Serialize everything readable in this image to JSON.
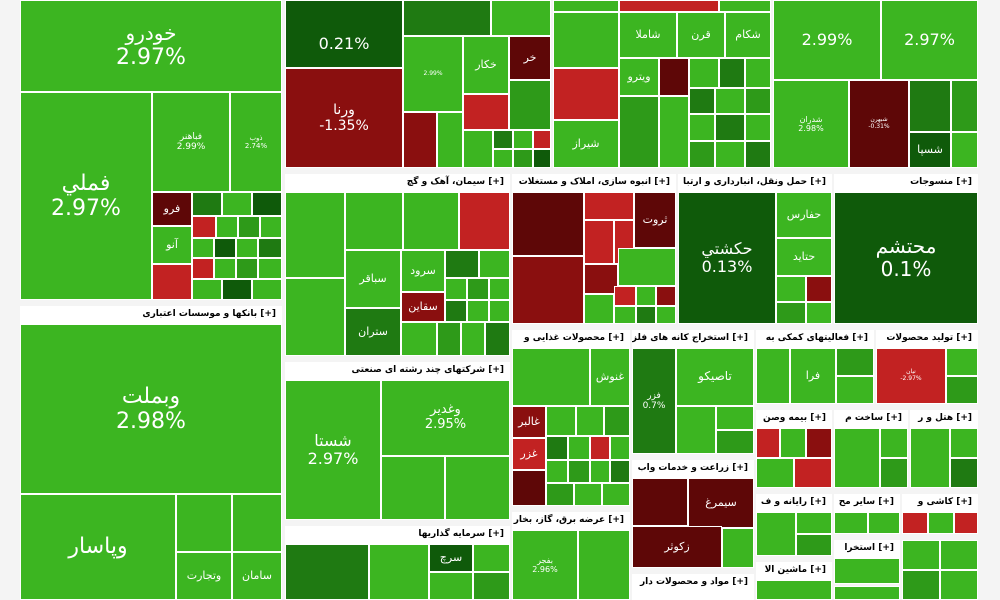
{
  "colors": {
    "g1": "#3cb521",
    "g2": "#2e9a19",
    "g3": "#1f7a12",
    "g4": "#0f5a0a",
    "r1": "#c22222",
    "r2": "#8a0f0f",
    "r3": "#5e0707"
  },
  "sections": [
    {
      "id": "s-khodro",
      "header": ""
    },
    {
      "id": "s-felzat",
      "header": ""
    },
    {
      "id": "s-top-mid",
      "header": ""
    },
    {
      "id": "s-top-mid2",
      "header": ""
    },
    {
      "id": "s-top-right",
      "header": ""
    },
    {
      "id": "s-bank",
      "header": "[+] بانکها و موسسات اعتباری"
    },
    {
      "id": "s-siman",
      "header": "[+] سیمان، آهک و گچ"
    },
    {
      "id": "s-anboh",
      "header": "[+] انبوه سازی، املاک و مستغلات"
    },
    {
      "id": "s-haml",
      "header": "[+] حمل ونقل، انبارداری و ارتبا"
    },
    {
      "id": "s-mansoojat",
      "header": "[+] منسوجات"
    },
    {
      "id": "s-chandreshte",
      "header": "[+] شرکتهای چند رشته ای صنعتی"
    },
    {
      "id": "s-ghazaei",
      "header": "[+] محصولات غذایی و"
    },
    {
      "id": "s-estekhraj",
      "header": "[+] استخراج کانه های فلزی"
    },
    {
      "id": "s-komaki",
      "header": "[+] فعالیتهای کمکی به"
    },
    {
      "id": "s-tolid",
      "header": "[+] تولید محصولات"
    },
    {
      "id": "s-sarmaye",
      "header": "[+] سرمایه گذاریها"
    },
    {
      "id": "s-bargh",
      "header": "[+] عرضه برق، گاز، بخار"
    },
    {
      "id": "s-zeraat",
      "header": "[+] زراعت و خدمات واب"
    },
    {
      "id": "s-bime",
      "header": "[+] بیمه وصن"
    },
    {
      "id": "s-sakht",
      "header": "[+] ساخت م"
    },
    {
      "id": "s-hotel",
      "header": "[+] هتل و ر"
    },
    {
      "id": "s-rayane",
      "header": "[+] رایانه و ف"
    },
    {
      "id": "s-sayer",
      "header": "[+] سایر مح"
    },
    {
      "id": "s-kashi",
      "header": "[+] کاشی و"
    },
    {
      "id": "s-mashin",
      "header": "[+] ماشین الا"
    },
    {
      "id": "s-estekhra2",
      "header": "[+] استخرا"
    },
    {
      "id": "s-mavad",
      "header": "[+] مواد و محصولات دار"
    }
  ],
  "tiles": [
    {
      "name": "خودرو",
      "pct": "2.97%",
      "c": "g1"
    },
    {
      "name": "فملي",
      "pct": "2.97%",
      "c": "g1"
    },
    {
      "name": "فباهنر",
      "pct": "2.99%",
      "c": "g1"
    },
    {
      "name": "ذوب",
      "pct": "2.74%",
      "c": "g1"
    },
    {
      "name": "فرو",
      "pct": "",
      "c": "r3"
    },
    {
      "name": "آنو",
      "pct": "",
      "c": "g1"
    },
    {
      "name": "",
      "pct": "0.21%",
      "c": "g4"
    },
    {
      "name": "ورنا",
      "pct": "-1.35%",
      "c": "r2"
    },
    {
      "name": "شیراز",
      "pct": "2.99%",
      "c": "g1"
    },
    {
      "name": "خكار",
      "pct": "",
      "c": "g1"
    },
    {
      "name": "خر",
      "pct": "",
      "c": "r3"
    },
    {
      "name": "شاملا",
      "pct": "",
      "c": "g1"
    },
    {
      "name": "قرن",
      "pct": "",
      "c": "g1"
    },
    {
      "name": "شکام",
      "pct": "",
      "c": "g1"
    },
    {
      "name": "ويترو",
      "pct": "",
      "c": "g1"
    },
    {
      "name": "شيراز",
      "pct": "",
      "c": "g1"
    },
    {
      "name": "",
      "pct": "2.99%",
      "c": "g1"
    },
    {
      "name": "",
      "pct": "2.97%",
      "c": "g1"
    },
    {
      "name": "شدران",
      "pct": "2.98%",
      "c": "g1"
    },
    {
      "name": "شسپا",
      "pct": "",
      "c": "g4"
    },
    {
      "name": "شبهرن",
      "pct": "-0.31%",
      "c": "r3"
    },
    {
      "name": "وبملت",
      "pct": "2.98%",
      "c": "g1"
    },
    {
      "name": "وپاسار",
      "pct": "",
      "c": "g1"
    },
    {
      "name": "وتجارت",
      "pct": "",
      "c": "g1"
    },
    {
      "name": "سامان",
      "pct": "",
      "c": "g1"
    },
    {
      "name": "سباقر",
      "pct": "",
      "c": "g1"
    },
    {
      "name": "سرود",
      "pct": "",
      "c": "g1"
    },
    {
      "name": "سقاين",
      "pct": "",
      "c": "r2"
    },
    {
      "name": "ستران",
      "pct": "",
      "c": "g3"
    },
    {
      "name": "ثروت",
      "pct": "",
      "c": "r3"
    },
    {
      "name": "حكشتي",
      "pct": "0.13%",
      "c": "g4"
    },
    {
      "name": "حفارس",
      "pct": "",
      "c": "g1"
    },
    {
      "name": "حتاید",
      "pct": "",
      "c": "g1"
    },
    {
      "name": "محتشم",
      "pct": "0.1%",
      "c": "g4"
    },
    {
      "name": "شستا",
      "pct": "2.97%",
      "c": "g1"
    },
    {
      "name": "وغدیر",
      "pct": "2.95%",
      "c": "g1"
    },
    {
      "name": "غنوش",
      "pct": "",
      "c": "g1"
    },
    {
      "name": "غالبر",
      "pct": "",
      "c": "r2"
    },
    {
      "name": "غزر",
      "pct": "",
      "c": "r1"
    },
    {
      "name": "تاصيكو",
      "pct": "",
      "c": "g1"
    },
    {
      "name": "فزر",
      "pct": "0.7%",
      "c": "g4"
    },
    {
      "name": "فرا",
      "pct": "",
      "c": "g1"
    },
    {
      "name": "نيان",
      "pct": "-2.97%",
      "c": "r1"
    },
    {
      "name": "سیمرغ",
      "pct": "",
      "c": "r2"
    },
    {
      "name": "زكوثر",
      "pct": "",
      "c": "r3"
    },
    {
      "name": "بفجر",
      "pct": "2.96%",
      "c": "g1"
    },
    {
      "name": "سرچ",
      "pct": "",
      "c": "g4"
    }
  ]
}
